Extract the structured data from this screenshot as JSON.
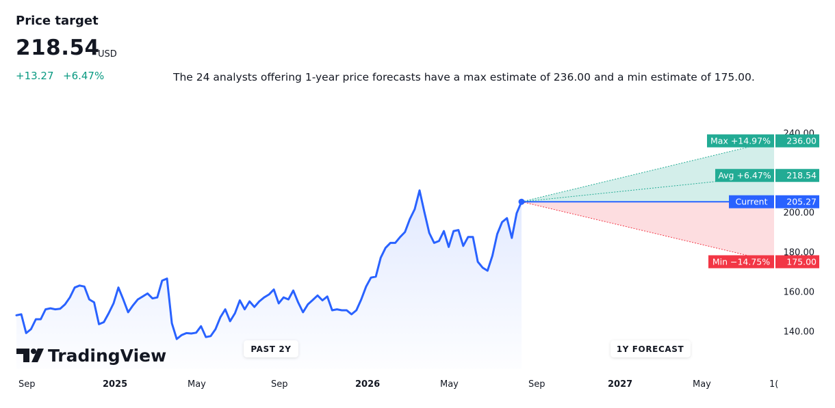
{
  "header": {
    "title": "Price target",
    "price": "218.54",
    "currency": "USD",
    "change_abs": "+13.27",
    "change_pct": "+6.47%",
    "summary": "The 24 analysts offering 1-year price forecasts have a max estimate of 236.00 and a min estimate of 175.00."
  },
  "chart_data": {
    "type": "line",
    "series": [
      {
        "values": [
          148,
          148.5,
          139,
          141,
          146,
          146,
          151,
          151.5,
          151,
          151.3,
          153.5,
          157,
          162,
          163,
          162.5,
          156,
          154.5,
          143.5,
          144.5,
          149,
          154,
          162,
          156,
          149.5,
          153,
          156,
          157.5,
          159,
          156.5,
          157,
          165.5,
          166.5,
          144,
          136,
          138,
          139,
          138.8,
          139.2,
          142.5,
          137,
          137.5,
          141,
          147,
          151,
          145,
          149,
          155.5,
          151,
          155,
          152.2,
          155,
          157,
          158.5,
          161,
          154,
          157,
          156,
          160.5,
          154.5,
          149.5,
          153.5,
          155.7,
          158,
          155.5,
          157.5,
          150.5,
          151,
          150.5,
          150.5,
          148.5,
          150.5,
          156,
          162.5,
          167,
          167.5,
          177,
          182,
          184.5,
          184.5,
          187.5,
          190,
          196.5,
          201.5,
          211,
          200,
          189.5,
          184.5,
          185.5,
          190.5,
          182.5,
          190.5,
          191,
          183,
          187.5,
          187.5,
          175,
          172,
          170.5,
          178,
          189,
          195,
          197,
          187,
          199.5,
          205.27
        ]
      }
    ],
    "forecast": {
      "current": {
        "label": "Current",
        "value": "205.27"
      },
      "max": {
        "label": "Max +14.97%",
        "value": "236.00"
      },
      "avg": {
        "label": "Avg +6.47%",
        "value": "218.54"
      },
      "min": {
        "label": "Min −14.75%",
        "value": "175.00"
      }
    },
    "y_ticks": [
      "240.00",
      "200.00",
      "180.00",
      "160.00",
      "140.00"
    ],
    "x_ticks": [
      "Sep",
      "2025",
      "May",
      "Sep",
      "2026",
      "May",
      "Sep",
      "2027",
      "May",
      "1("
    ],
    "period_labels": {
      "past": "PAST 2Y",
      "forecast": "1Y FORECAST"
    },
    "colors": {
      "line": "#2962ff",
      "max": "#22ab94",
      "min": "#f23645",
      "current": "#2962ff",
      "axis_bg": "#ffffff"
    }
  },
  "brand": {
    "name": "TradingView"
  }
}
